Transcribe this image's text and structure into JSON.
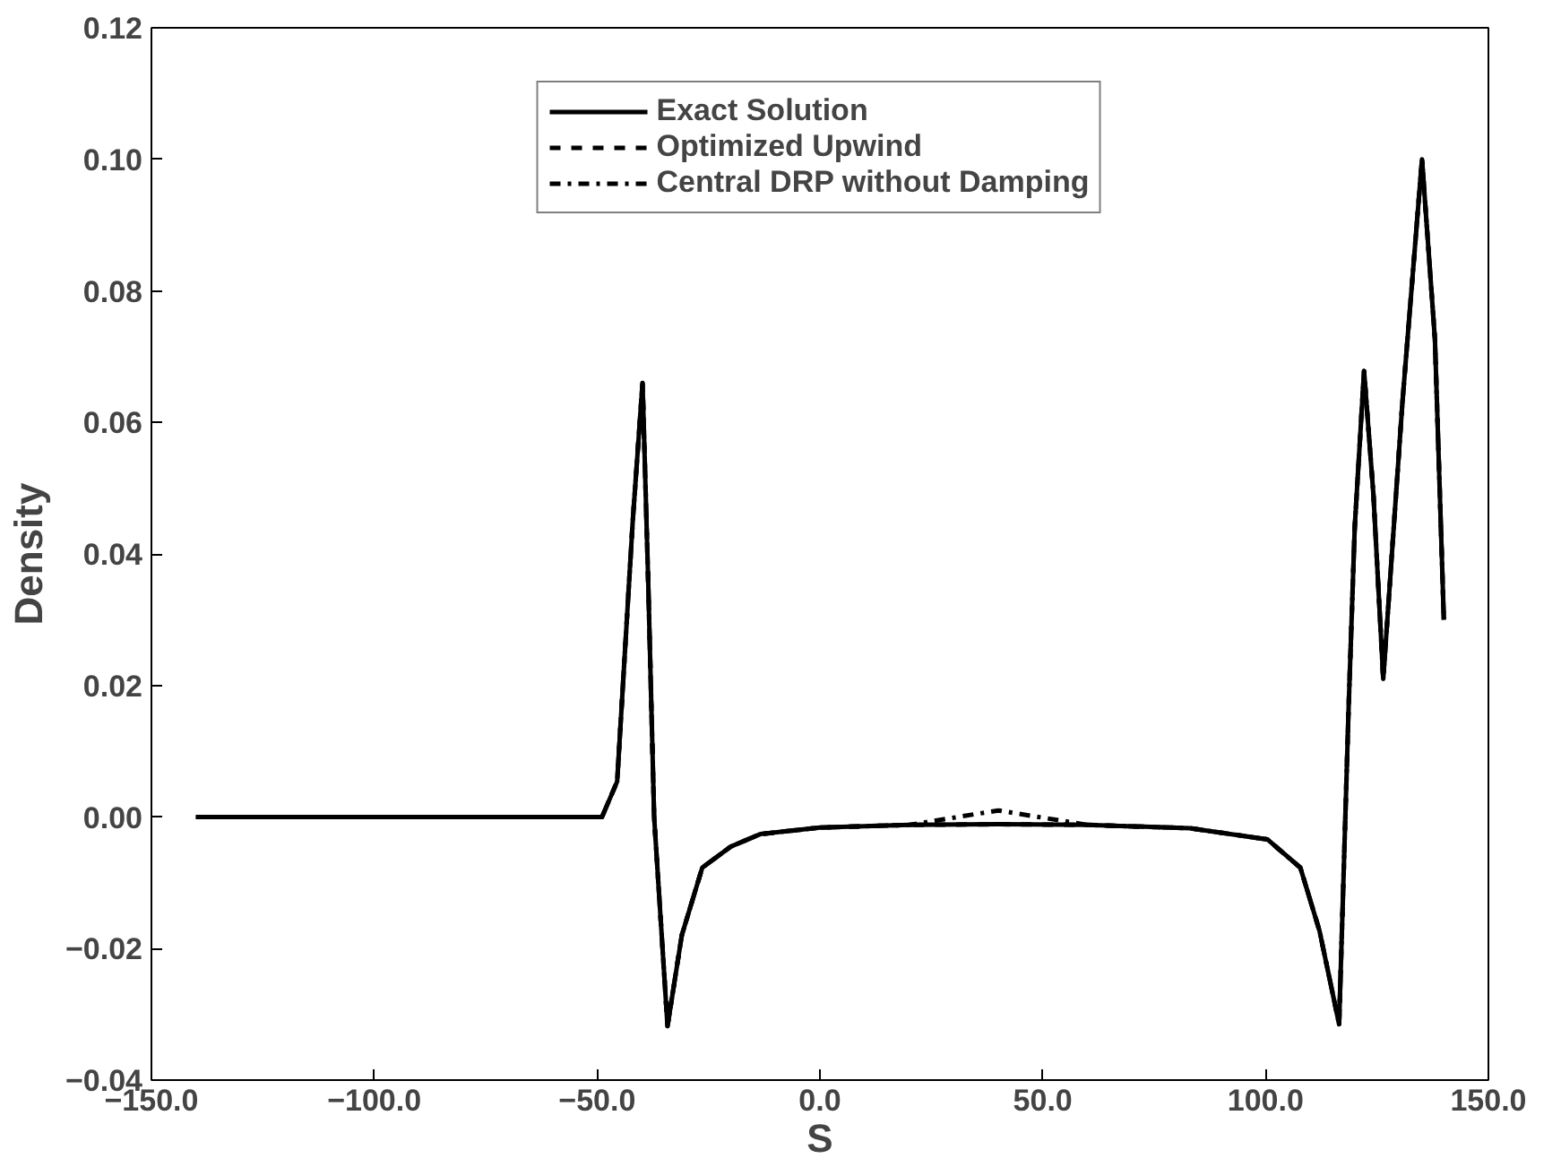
{
  "chart_data": {
    "type": "line",
    "xlabel": "S",
    "ylabel": "Density",
    "x": [
      -140,
      -100,
      -60,
      -48.9,
      -45.5,
      -42,
      -39.8,
      -38.5,
      -37.2,
      -34.2,
      -31,
      -26.4,
      -20,
      -13.4,
      0,
      20,
      40,
      60,
      83,
      100.4,
      107.8,
      112.1,
      116.5,
      118.6,
      120,
      122.1,
      124.2,
      126.4,
      130.7,
      135.1,
      138,
      140
    ],
    "series": [
      {
        "name": "Exact Solution",
        "color": "#000000",
        "line_style": "solid",
        "values": [
          0,
          0,
          0,
          0,
          0.0054,
          0.045,
          0.066,
          0.035,
          0,
          -0.0318,
          -0.018,
          -0.0077,
          -0.0045,
          -0.0026,
          -0.0016,
          -0.0012,
          -0.0011,
          -0.0012,
          -0.0017,
          -0.0034,
          -0.0077,
          -0.0173,
          -0.0315,
          0.0159,
          0.044,
          0.0678,
          0.049,
          0.021,
          0.063,
          0.1,
          0.0726,
          0.03
        ]
      },
      {
        "name": "Optimized Upwind",
        "color": "#000000",
        "line_style": "dashed",
        "values": [
          0,
          0,
          0,
          0,
          0.0054,
          0.045,
          0.066,
          0.035,
          0,
          -0.0318,
          -0.018,
          -0.0077,
          -0.0045,
          -0.0026,
          -0.0016,
          -0.0012,
          -0.0011,
          -0.0012,
          -0.0017,
          -0.0034,
          -0.0077,
          -0.0173,
          -0.0315,
          0.0159,
          0.044,
          0.0678,
          0.049,
          0.021,
          0.063,
          0.1,
          0.0726,
          0.03
        ]
      },
      {
        "name": "Central DRP without Damping",
        "color": "#000000",
        "line_style": "dashdot",
        "values": [
          0,
          0,
          0,
          0,
          0.0054,
          0.045,
          0.066,
          0.035,
          0,
          -0.0318,
          -0.018,
          -0.0077,
          -0.0045,
          -0.0026,
          -0.0016,
          -0.0012,
          0.001,
          -0.0012,
          -0.0017,
          -0.0034,
          -0.0077,
          -0.0173,
          -0.0315,
          0.0159,
          0.044,
          0.0678,
          0.049,
          0.021,
          0.063,
          0.1,
          0.0726,
          0.03
        ]
      }
    ],
    "xlim": [
      -150,
      150
    ],
    "xticks": [
      {
        "value": -150,
        "label": "−150.0"
      },
      {
        "value": -100,
        "label": "−100.0"
      },
      {
        "value": -50,
        "label": "−50.0"
      },
      {
        "value": 0,
        "label": "0.0"
      },
      {
        "value": 50,
        "label": "50.0"
      },
      {
        "value": 100,
        "label": "100.0"
      },
      {
        "value": 150,
        "label": "150.0"
      }
    ],
    "ylim": [
      -0.04,
      0.12
    ],
    "yticks": [
      {
        "value": -0.04,
        "label": "−0.04"
      },
      {
        "value": -0.02,
        "label": "−0.02"
      },
      {
        "value": 0,
        "label": "0.00"
      },
      {
        "value": 0.02,
        "label": "0.02"
      },
      {
        "value": 0.04,
        "label": "0.04"
      },
      {
        "value": 0.06,
        "label": "0.06"
      },
      {
        "value": 0.08,
        "label": "0.08"
      },
      {
        "value": 0.1,
        "label": "0.10"
      },
      {
        "value": 0.12,
        "label": "0.12"
      }
    ],
    "grid": false,
    "legend": "top"
  }
}
